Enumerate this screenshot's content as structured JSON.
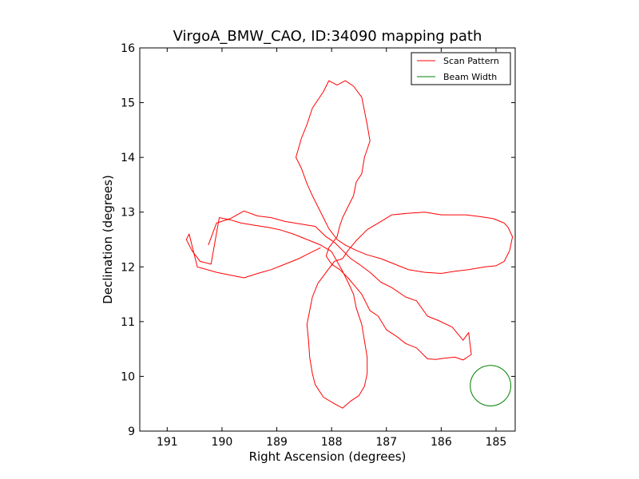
{
  "chart_data": {
    "type": "line",
    "title": "VirgoA_BMW_CAO, ID:34090 mapping path",
    "xlabel": "Right Ascension (degrees)",
    "ylabel": "Declination (degrees)",
    "xlim": [
      191.5,
      184.65
    ],
    "ylim": [
      9,
      16
    ],
    "x_inverted": true,
    "xticks": [
      191,
      190,
      189,
      188,
      187,
      186,
      185
    ],
    "yticks": [
      9,
      10,
      11,
      12,
      13,
      14,
      15,
      16
    ],
    "grid": false,
    "legend": {
      "placement": "top-right",
      "entries": [
        {
          "label": "Scan Pattern",
          "color": "#ff0000"
        },
        {
          "label": "Beam Width",
          "color": "#008000"
        }
      ]
    },
    "series": [
      {
        "name": "Scan Pattern",
        "color": "#ff0000",
        "points": [
          [
            190.25,
            12.4
          ],
          [
            190.1,
            12.8
          ],
          [
            189.85,
            12.88
          ],
          [
            189.6,
            13.02
          ],
          [
            189.35,
            12.93
          ],
          [
            189.1,
            12.9
          ],
          [
            188.85,
            12.83
          ],
          [
            188.55,
            12.78
          ],
          [
            188.3,
            12.74
          ],
          [
            188.1,
            12.55
          ],
          [
            187.95,
            12.45
          ],
          [
            187.8,
            12.3
          ],
          [
            187.65,
            12.15
          ],
          [
            187.5,
            12.05
          ],
          [
            187.3,
            11.9
          ],
          [
            187.1,
            11.72
          ],
          [
            186.9,
            11.62
          ],
          [
            186.65,
            11.45
          ],
          [
            186.45,
            11.38
          ],
          [
            186.25,
            11.1
          ],
          [
            186.05,
            11.02
          ],
          [
            185.8,
            10.9
          ],
          [
            185.6,
            10.66
          ],
          [
            185.5,
            10.8
          ],
          [
            185.45,
            10.4
          ],
          [
            185.6,
            10.3
          ],
          [
            185.75,
            10.35
          ],
          [
            185.95,
            10.33
          ],
          [
            186.1,
            10.31
          ],
          [
            186.25,
            10.32
          ],
          [
            186.45,
            10.52
          ],
          [
            186.65,
            10.6
          ],
          [
            186.8,
            10.72
          ],
          [
            187.0,
            10.85
          ],
          [
            187.15,
            11.1
          ],
          [
            187.3,
            11.2
          ],
          [
            187.45,
            11.5
          ],
          [
            187.55,
            11.62
          ],
          [
            187.7,
            11.8
          ],
          [
            187.85,
            11.95
          ],
          [
            188.0,
            12.05
          ],
          [
            188.1,
            12.2
          ],
          [
            188.05,
            12.35
          ],
          [
            187.9,
            12.55
          ],
          [
            187.85,
            12.75
          ],
          [
            187.8,
            12.9
          ],
          [
            187.7,
            13.1
          ],
          [
            187.6,
            13.3
          ],
          [
            187.55,
            13.55
          ],
          [
            187.45,
            13.7
          ],
          [
            187.4,
            14.0
          ],
          [
            187.3,
            14.3
          ],
          [
            187.35,
            14.6
          ],
          [
            187.4,
            14.85
          ],
          [
            187.45,
            15.1
          ],
          [
            187.6,
            15.3
          ],
          [
            187.75,
            15.4
          ],
          [
            187.9,
            15.32
          ],
          [
            188.05,
            15.4
          ],
          [
            188.15,
            15.2
          ],
          [
            188.35,
            14.9
          ],
          [
            188.45,
            14.6
          ],
          [
            188.55,
            14.35
          ],
          [
            188.65,
            14.0
          ],
          [
            188.55,
            13.8
          ],
          [
            188.45,
            13.52
          ],
          [
            188.35,
            13.3
          ],
          [
            188.25,
            13.1
          ],
          [
            188.15,
            12.9
          ],
          [
            188.05,
            12.7
          ],
          [
            187.9,
            12.5
          ],
          [
            187.75,
            12.4
          ],
          [
            187.55,
            12.3
          ],
          [
            187.35,
            12.22
          ],
          [
            187.1,
            12.15
          ],
          [
            186.85,
            12.05
          ],
          [
            186.6,
            11.95
          ],
          [
            186.3,
            11.9
          ],
          [
            186.0,
            11.88
          ],
          [
            185.75,
            11.92
          ],
          [
            185.5,
            11.95
          ],
          [
            185.2,
            12.0
          ],
          [
            185.0,
            12.02
          ],
          [
            184.85,
            12.1
          ],
          [
            184.75,
            12.3
          ],
          [
            184.7,
            12.55
          ],
          [
            184.78,
            12.72
          ],
          [
            184.85,
            12.8
          ],
          [
            185.05,
            12.88
          ],
          [
            185.3,
            12.92
          ],
          [
            185.55,
            12.95
          ],
          [
            185.8,
            12.95
          ],
          [
            186.0,
            12.95
          ],
          [
            186.3,
            13.0
          ],
          [
            186.6,
            12.98
          ],
          [
            186.9,
            12.95
          ],
          [
            187.15,
            12.8
          ],
          [
            187.35,
            12.68
          ],
          [
            187.55,
            12.48
          ],
          [
            187.7,
            12.3
          ],
          [
            187.8,
            12.15
          ],
          [
            187.95,
            12.1
          ],
          [
            188.1,
            11.9
          ],
          [
            188.25,
            11.7
          ],
          [
            188.35,
            11.45
          ],
          [
            188.4,
            11.2
          ],
          [
            188.45,
            10.95
          ],
          [
            188.42,
            10.65
          ],
          [
            188.4,
            10.35
          ],
          [
            188.35,
            10.05
          ],
          [
            188.3,
            9.85
          ],
          [
            188.15,
            9.62
          ],
          [
            187.95,
            9.5
          ],
          [
            187.8,
            9.42
          ],
          [
            187.65,
            9.55
          ],
          [
            187.5,
            9.65
          ],
          [
            187.4,
            9.82
          ],
          [
            187.35,
            10.05
          ],
          [
            187.35,
            10.35
          ],
          [
            187.4,
            10.65
          ],
          [
            187.45,
            10.95
          ],
          [
            187.55,
            11.25
          ],
          [
            187.6,
            11.5
          ],
          [
            187.7,
            11.72
          ],
          [
            187.8,
            11.92
          ],
          [
            187.9,
            12.1
          ],
          [
            188.0,
            12.28
          ],
          [
            188.2,
            12.4
          ],
          [
            188.45,
            12.5
          ],
          [
            188.7,
            12.6
          ],
          [
            188.95,
            12.68
          ],
          [
            189.15,
            12.72
          ],
          [
            189.4,
            12.76
          ],
          [
            189.65,
            12.8
          ],
          [
            189.85,
            12.86
          ],
          [
            190.05,
            12.9
          ],
          [
            190.2,
            12.05
          ],
          [
            190.4,
            12.1
          ],
          [
            190.55,
            12.3
          ],
          [
            190.65,
            12.5
          ],
          [
            190.6,
            12.6
          ],
          [
            190.45,
            12.0
          ],
          [
            190.1,
            11.9
          ],
          [
            189.85,
            11.85
          ],
          [
            189.6,
            11.8
          ],
          [
            189.35,
            11.88
          ],
          [
            189.1,
            11.95
          ],
          [
            188.85,
            12.05
          ],
          [
            188.6,
            12.15
          ],
          [
            188.4,
            12.25
          ],
          [
            188.2,
            12.35
          ]
        ]
      },
      {
        "name": "Beam Width",
        "color": "#008000",
        "circle": {
          "x": 185.1,
          "y": 9.83,
          "radius": 0.37
        }
      }
    ]
  }
}
